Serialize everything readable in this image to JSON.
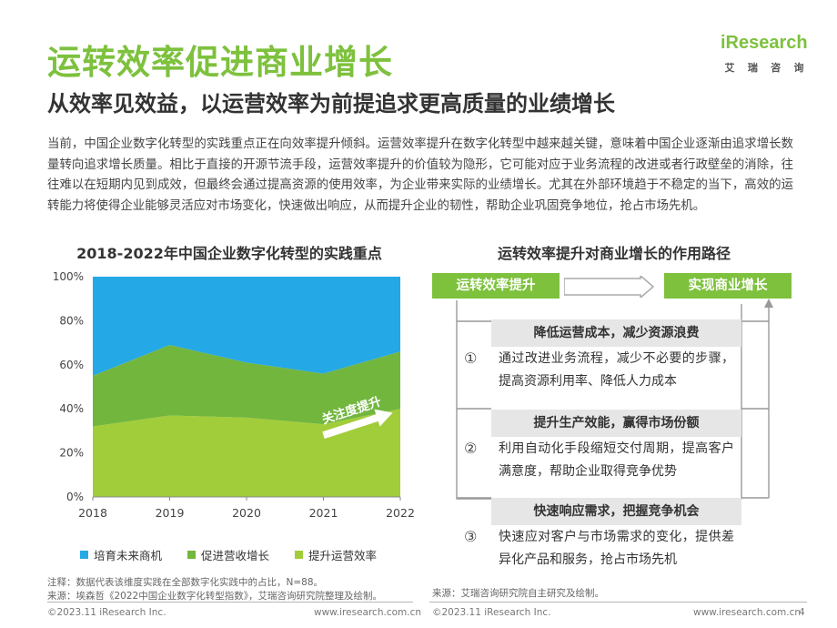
{
  "header": {
    "title": "运转效率促进商业增长",
    "subtitle": "从效率见效益，以运营效率为前提追求更高质量的业绩增长"
  },
  "logo": {
    "text": "iResearch",
    "cn_chars": [
      "艾",
      "瑞",
      "咨",
      "询"
    ]
  },
  "description": "当前，中国企业数字化转型的实践重点正在向效率提升倾斜。运营效率提升在数字化转型中越来越关键，意味着中国企业逐渐由追求增长数量转向追求增长质量。相比于直接的开源节流手段，运营效率提升的价值较为隐形，它可能对应于业务流程的改进或者行政壁垒的消除，往往难以在短期内见到成效，但最终会通过提高资源的使用效率，为企业带来实际的业绩增长。尤其在外部环境趋于不稳定的当下，高效的运转能力将使得企业能够灵活应对市场变化，快速做出响应，从而提升企业的韧性，帮助企业巩固竞争地位，抢占市场先机。",
  "chart_data": {
    "type": "area",
    "title": "2018-2022年中国企业数字化转型的实践重点",
    "x": [
      "2018",
      "2019",
      "2020",
      "2021",
      "2022"
    ],
    "y_ticks": [
      "0%",
      "20%",
      "40%",
      "60%",
      "80%",
      "100%"
    ],
    "ylim": [
      0,
      100
    ],
    "stacked": true,
    "series": [
      {
        "name": "提升运营效率",
        "values": [
          32,
          37,
          36,
          33,
          40
        ],
        "color": "#a2cd3a"
      },
      {
        "name": "促进营收增长",
        "values": [
          23,
          32,
          25,
          23,
          26
        ],
        "color": "#72b63e"
      },
      {
        "name": "培育未来商机",
        "values": [
          45,
          31,
          39,
          44,
          34
        ],
        "color": "#24a8e6"
      }
    ],
    "legend_order": [
      2,
      1,
      0
    ],
    "legend_position": "bottom",
    "annotation": "关注度提升",
    "grid": false
  },
  "notes": {
    "note": "注释：数据代表该维度实践在全部数字化实践中的占比，N=88。",
    "source_left": "来源：埃森哲《2022中国企业数字化转型指数》，艾瑞咨询研究院整理及绘制。",
    "source_right": "来源：艾瑞咨询研究院自主研究及绘制。"
  },
  "path": {
    "title": "运转效率提升对商业增长的作用路径",
    "start_label": "运转效率提升",
    "end_label": "实现商业增长",
    "steps": [
      {
        "num": "①",
        "head": "降低运营成本，减少资源浪费",
        "body": "通过改进业务流程，减少不必要的步骤，提高资源利用率、降低人力成本"
      },
      {
        "num": "②",
        "head": "提升生产效能，赢得市场份额",
        "body": "利用自动化手段缩短交付周期，提高客户满意度，帮助企业取得竞争优势"
      },
      {
        "num": "③",
        "head": "快速响应需求，把握竞争机会",
        "body": "快速应对客户与市场需求的变化，提供差异化产品和服务，抢占市场先机"
      }
    ]
  },
  "footer": {
    "copyright_left": "©2023.11 iResearch Inc.",
    "url_left": "www.iresearch.com.cn",
    "copyright_right": "©2023.11 iResearch Inc.",
    "url_right": "www.iresearch.com.cn",
    "page_number": "4"
  }
}
